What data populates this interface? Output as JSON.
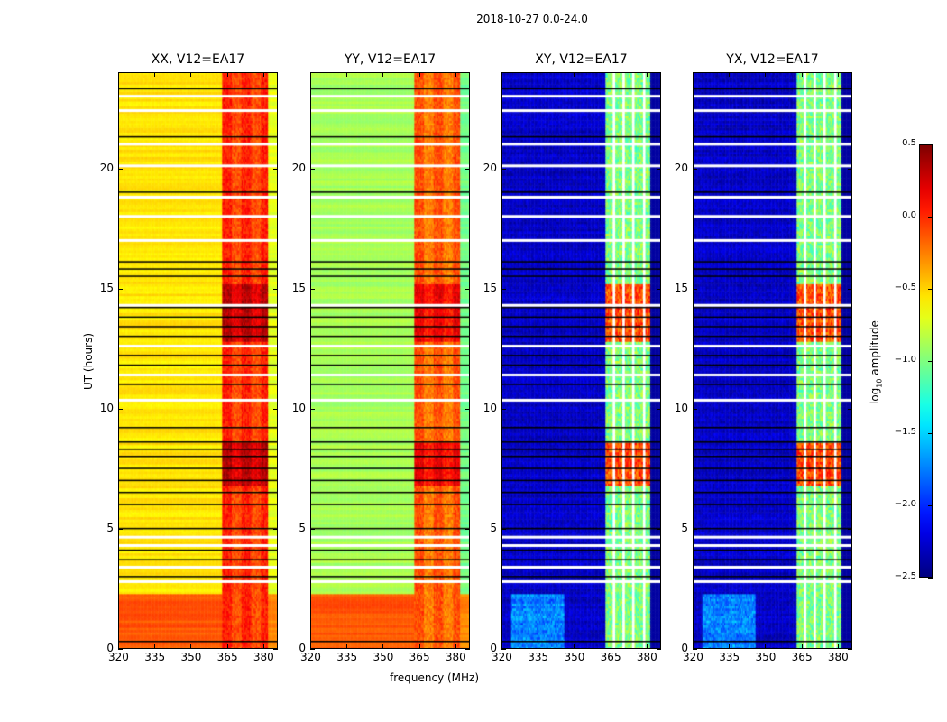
{
  "suptitle": "2018-10-27 0.0-24.0",
  "chart_data": {
    "type": "heatmap",
    "xlabel": "frequency (MHz)",
    "ylabel": "UT (hours)",
    "xlim": [
      320,
      386
    ],
    "ylim": [
      0,
      24
    ],
    "xticks": [
      "320",
      "335",
      "350",
      "365",
      "380"
    ],
    "xtick_values": [
      320,
      335,
      350,
      365,
      380
    ],
    "yticks": [
      "0",
      "5",
      "10",
      "15",
      "20"
    ],
    "ytick_values": [
      0,
      5,
      10,
      15,
      20
    ],
    "colorbar": {
      "label_pre": "log",
      "label_sub": "10",
      "label_post": " amplitude",
      "range": [
        -2.5,
        0.5
      ],
      "ticks": [
        "0.5",
        "0.0",
        "−0.5",
        "−1.0",
        "−1.5",
        "−2.0",
        "−2.5"
      ],
      "tick_values": [
        0.5,
        0.0,
        -0.5,
        -1.0,
        -1.5,
        -2.0,
        -2.5
      ],
      "colormap": "jet"
    },
    "panels": [
      {
        "title": "XX, V12=EA17",
        "kind": "parallel",
        "background": -0.55,
        "low_time_level": -0.12,
        "band_level": -0.15
      },
      {
        "title": "YY, V12=EA17",
        "kind": "parallel",
        "background": -0.88,
        "low_time_level": -0.12,
        "band_level": -0.3
      },
      {
        "title": "XY, V12=EA17",
        "kind": "cross",
        "background": -2.3,
        "low_time_level": -2.3,
        "band_level": -1.0
      },
      {
        "title": "YX, V12=EA17",
        "kind": "cross",
        "background": -2.3,
        "low_time_level": -2.3,
        "band_level": -1.0
      }
    ],
    "rfi_band_mhz": [
      363,
      382
    ],
    "strong_rfi_hours": [
      [
        12.8,
        15.2
      ],
      [
        6.8,
        8.6
      ]
    ],
    "flagged_hours_white": [
      2.8,
      3.4,
      4.3,
      4.65,
      10.35,
      11.4,
      12.6,
      14.3,
      17.0,
      18.0,
      18.8,
      20.1,
      21.0,
      22.4,
      23.0
    ],
    "flagged_hours_black": [
      0.3,
      3.0,
      3.7,
      4.1,
      5.0,
      6.0,
      6.5,
      7.0,
      7.5,
      8.0,
      8.3,
      8.6,
      9.2,
      11.0,
      11.8,
      12.2,
      13.0,
      13.4,
      13.8,
      14.2,
      15.5,
      15.8,
      16.1,
      19.0,
      21.3,
      23.3
    ]
  }
}
